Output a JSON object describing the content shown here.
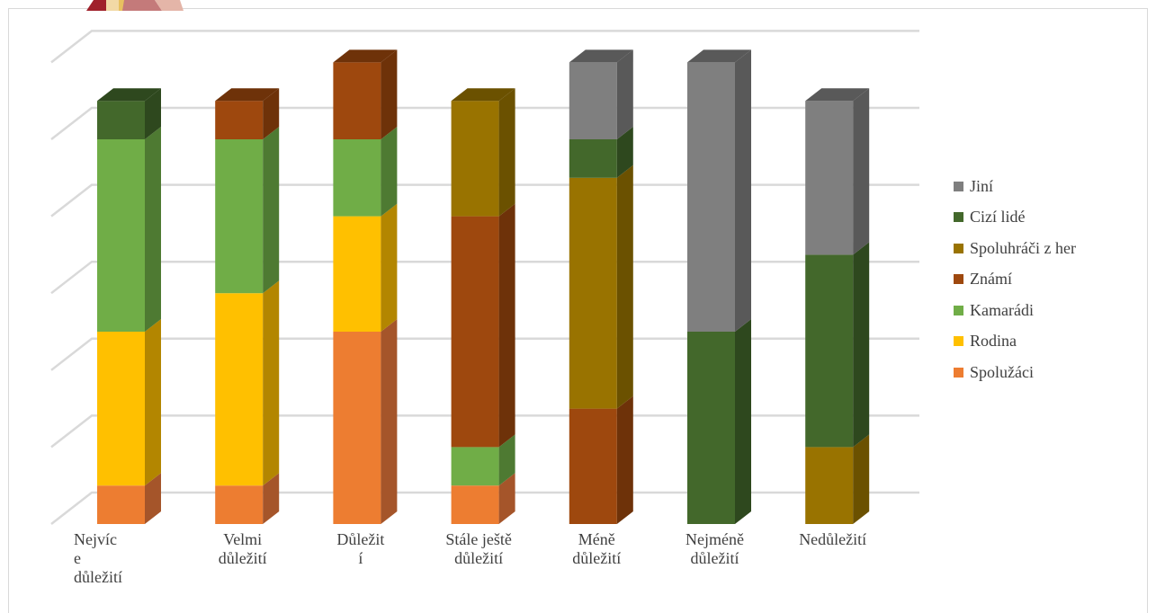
{
  "chart_data": {
    "type": "bar",
    "stacked": true,
    "three_d": true,
    "categories": [
      [
        "Nejvíc",
        "e",
        "důležití"
      ],
      [
        "Velmi",
        "důležití"
      ],
      [
        "Důležit",
        "í"
      ],
      [
        "Stále ještě",
        "důležití"
      ],
      [
        "Méně",
        "důležití"
      ],
      [
        "Nejméně",
        "důležití"
      ],
      [
        "Nedůležití"
      ]
    ],
    "series": [
      {
        "name": "Spolužáci",
        "color": "#ED7D31",
        "side": "#A5552A",
        "values": [
          1,
          1,
          5,
          1,
          0,
          0,
          0
        ]
      },
      {
        "name": "Rodina",
        "color": "#FFC000",
        "side": "#B38600",
        "values": [
          4,
          5,
          3,
          0,
          0,
          0,
          0
        ]
      },
      {
        "name": "Kamarádi",
        "color": "#70AD47",
        "side": "#4E7A32",
        "values": [
          5,
          4,
          2,
          1,
          0,
          0,
          0
        ]
      },
      {
        "name": "Známí",
        "color": "#9E480E",
        "side": "#6E3209",
        "values": [
          0,
          1,
          2,
          6,
          3,
          0,
          0
        ]
      },
      {
        "name": "Spoluhráči z her",
        "color": "#997300",
        "side": "#6B5100",
        "values": [
          0,
          0,
          0,
          3,
          6,
          0,
          2
        ]
      },
      {
        "name": "Cizí lidé",
        "color": "#43682B",
        "side": "#2E481E",
        "values": [
          1,
          0,
          0,
          0,
          1,
          5,
          5
        ]
      },
      {
        "name": "Jiní",
        "color": "#7F7F7F",
        "side": "#595959",
        "values": [
          0,
          0,
          0,
          0,
          2,
          7,
          4
        ]
      }
    ],
    "legend_position": "right",
    "legend_order": [
      "Jiní",
      "Cizí lidé",
      "Spoluhráči z her",
      "Známí",
      "Kamarádi",
      "Rodina",
      "Spolužáci"
    ],
    "grid": true,
    "ylim": [
      0,
      12
    ]
  }
}
